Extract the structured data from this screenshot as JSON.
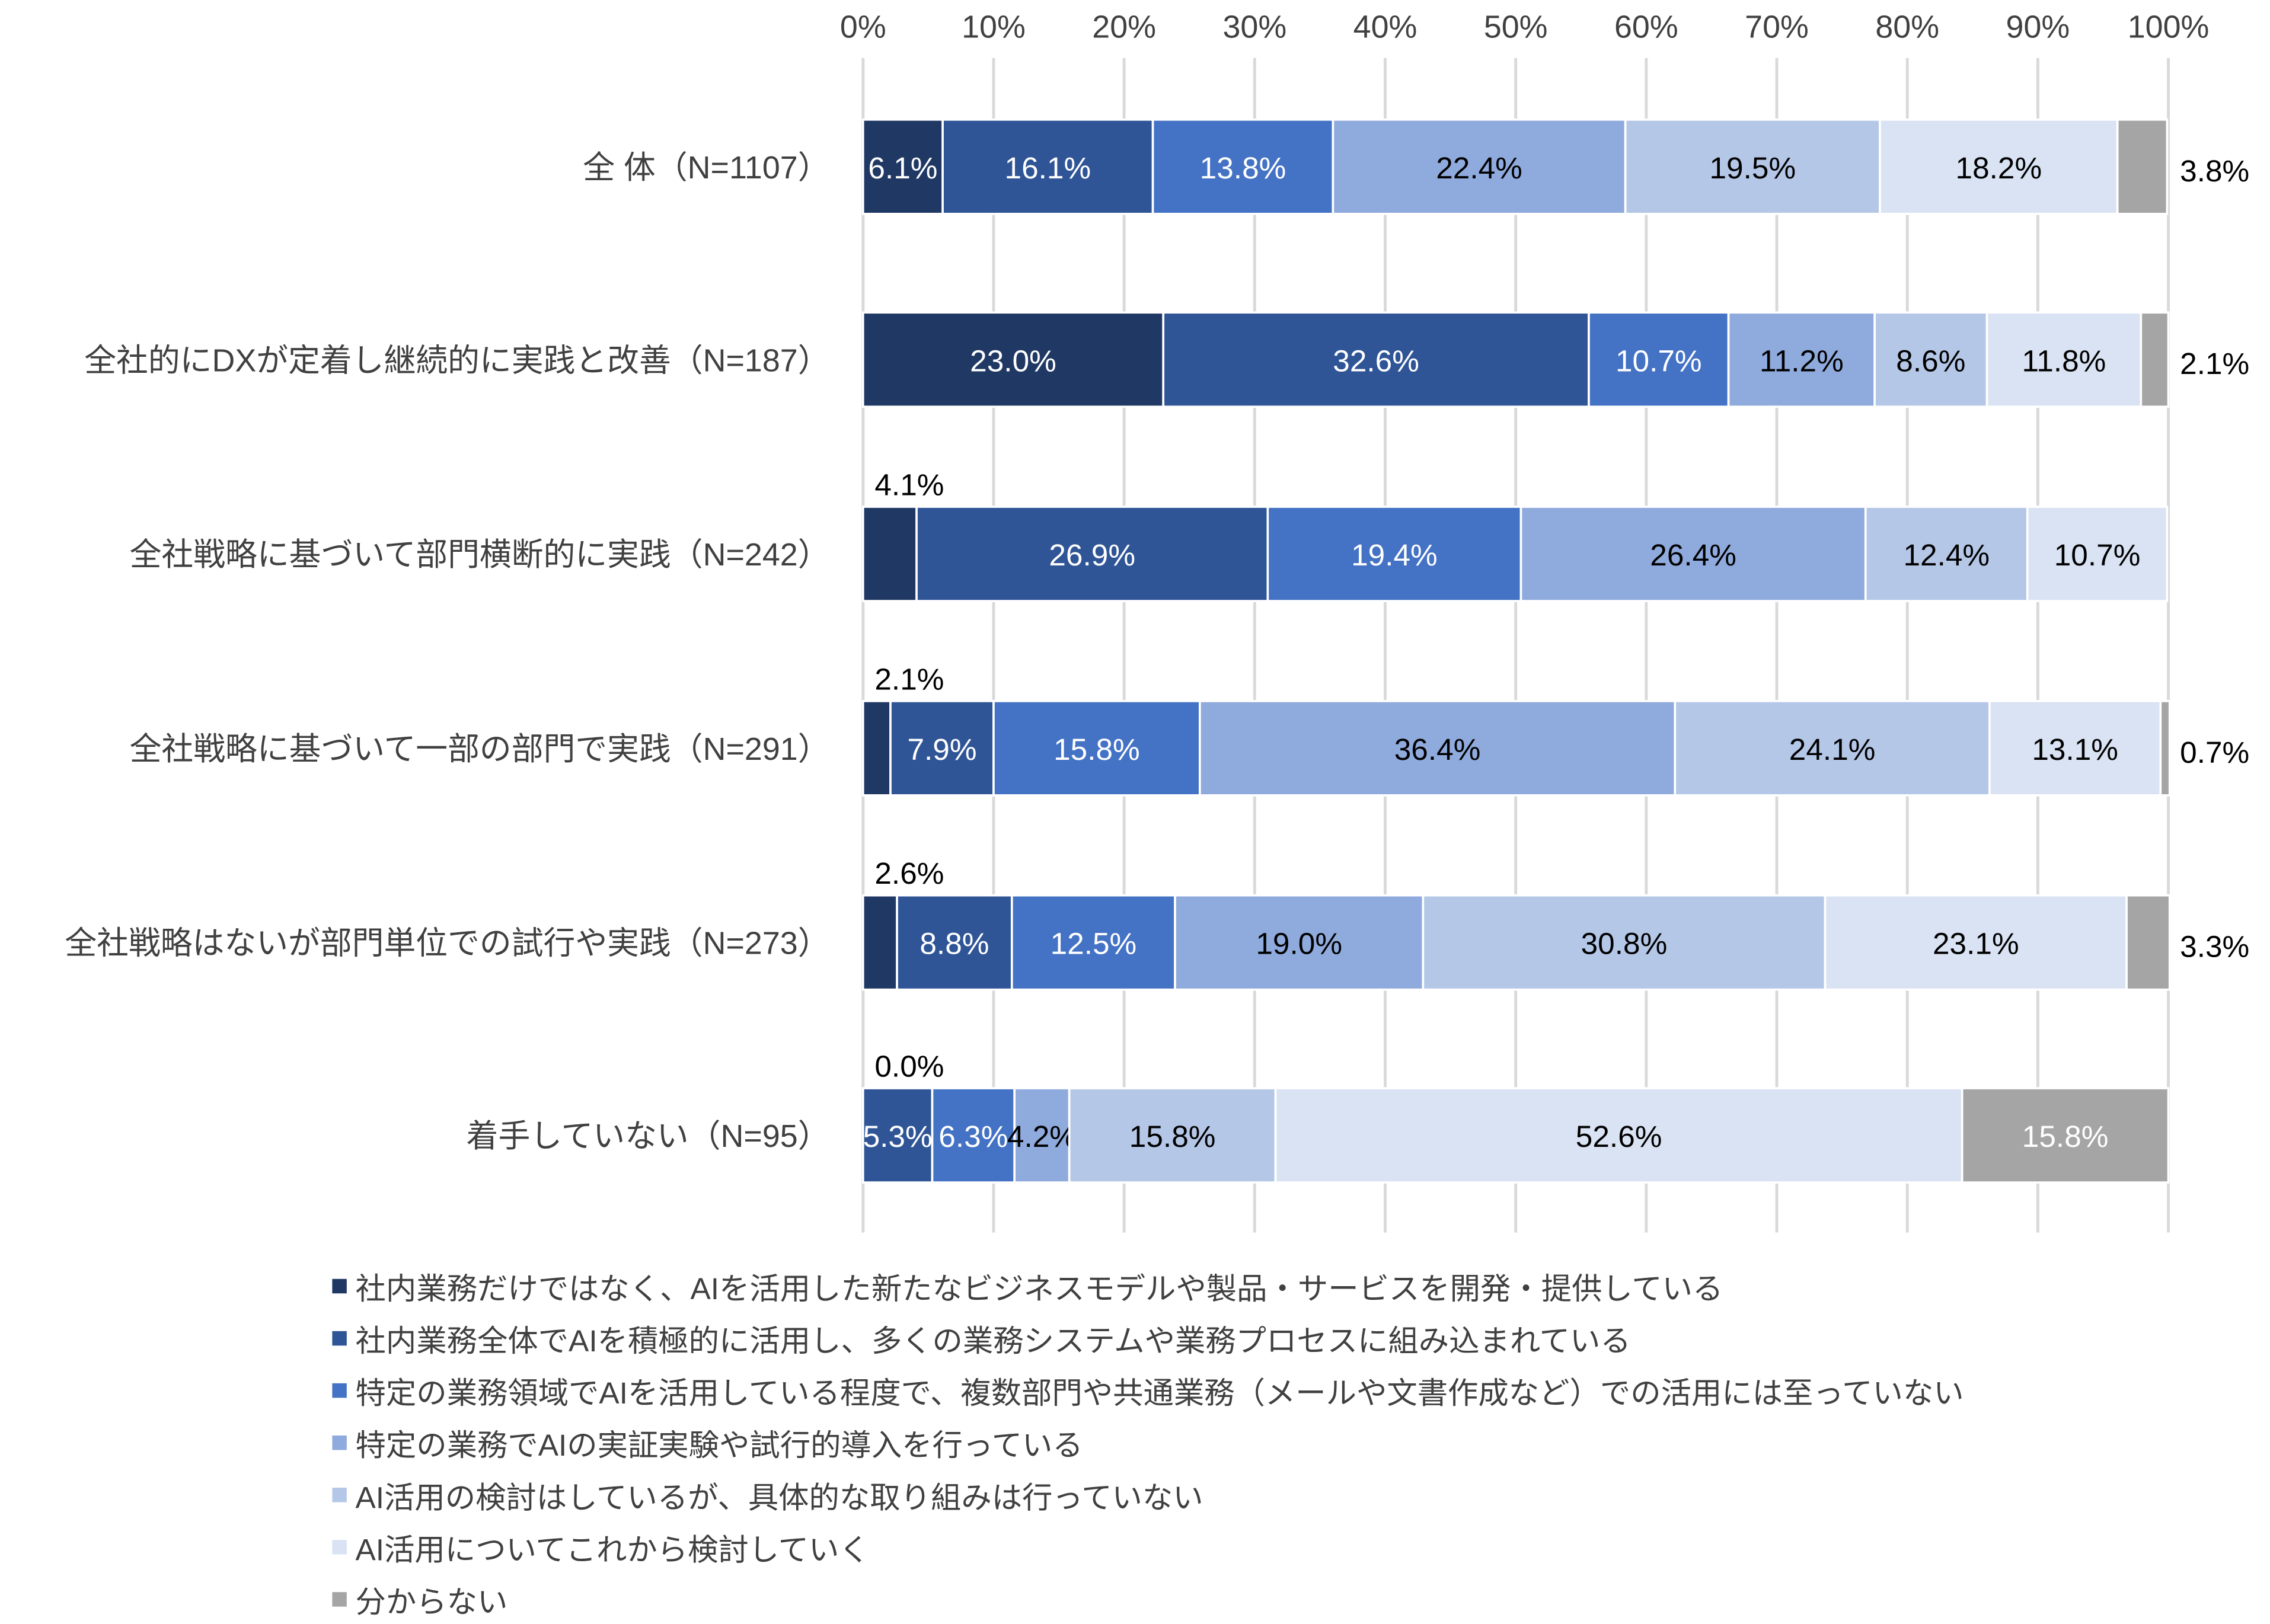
{
  "chart_data": {
    "type": "bar",
    "orientation": "horizontal",
    "stacked": "percent",
    "xlim": [
      0,
      100
    ],
    "x_ticks": [
      "0%",
      "10%",
      "20%",
      "30%",
      "40%",
      "50%",
      "60%",
      "70%",
      "80%",
      "90%",
      "100%"
    ],
    "grid": true,
    "legend_placement": "bottom",
    "categories": [
      "全 体（N=1107）",
      "全社的にDXが定着し継続的に実践と改善（N=187）",
      "全社戦略に基づいて部門横断的に実践（N=242）",
      "全社戦略に基づいて一部の部門で実践（N=291）",
      "全社戦略はないが部門単位での試行や実践（N=273）",
      "着手していない（N=95）"
    ],
    "series": [
      {
        "name": "社内業務だけではなく、AIを活用した新たなビジネスモデルや製品・サービスを開発・提供している",
        "color": "#203864",
        "values": [
          6.1,
          23.0,
          4.1,
          2.1,
          2.6,
          0.0
        ]
      },
      {
        "name": "社内業務全体でAIを積極的に活用し、多くの業務システムや業務プロセスに組み込まれている",
        "color": "#2F5597",
        "values": [
          16.1,
          32.6,
          26.9,
          7.9,
          8.8,
          5.3
        ]
      },
      {
        "name": "特定の業務領域でAIを活用している程度で、複数部門や共通業務（メールや文書作成など）での活用には至っていない",
        "color": "#4472C4",
        "values": [
          13.8,
          10.7,
          19.4,
          15.8,
          12.5,
          6.3
        ]
      },
      {
        "name": "特定の業務でAIの実証実験や試行的導入を行っている",
        "color": "#8FAADC",
        "values": [
          22.4,
          11.2,
          26.4,
          36.4,
          19.0,
          4.2
        ]
      },
      {
        "name": "AI活用の検討はしているが、具体的な取り組みは行っていない",
        "color": "#B4C7E7",
        "values": [
          19.5,
          8.6,
          12.4,
          24.1,
          30.8,
          15.8
        ]
      },
      {
        "name": "AI活用についてこれから検討していく",
        "color": "#DAE3F3",
        "values": [
          18.2,
          11.8,
          10.7,
          13.1,
          23.1,
          52.6
        ]
      },
      {
        "name": "分からない",
        "color": "#A5A5A5",
        "values": [
          3.8,
          2.1,
          null,
          0.7,
          3.3,
          15.8
        ]
      }
    ]
  }
}
